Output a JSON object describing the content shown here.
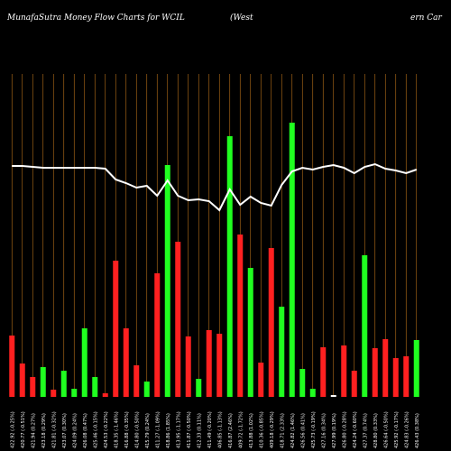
{
  "chart_data": {
    "type": "bar",
    "title": "MunafaSutra  Money Flow  Charts for WCIL",
    "title_mid": "(West",
    "title_right": "ern  Car",
    "categories": [
      "422.92 (-0.25%)",
      "420.77 (-0.51%)",
      "421.94 (0.27%)",
      "423.18 (0.29%)",
      "421.81 (-0.32%)",
      "423.07 (0.30%)",
      "424.09 (0.24%)",
      "426.08 (0.47%)",
      "425.46 (-0.15%)",
      "424.53 (-0.22%)",
      "418.35 (-1.46%)",
      "416.88 (-0.35%)",
      "414.80 (-0.50%)",
      "415.79 (0.24%)",
      "411.27 (-1.09%)",
      "418.86 (1.85%)",
      "413.95 (-1.17%)",
      "411.87 (-0.50%)",
      "412.33 (0.11%)",
      "411.49 (-0.20%)",
      "406.85 (-1.13%)",
      "416.87 (2.46%)",
      "409.72 (-1.72%)",
      "413.88 (1.02%)",
      "410.36 (-0.85%)",
      "409.18 (-0.29%)",
      "418.71 (2.33%)",
      "424.82 (1.46%)",
      "426.56 (0.41%)",
      "425.73 (-0.19%)",
      "427.16 (0.34%)",
      "427.99 (0.19%)",
      "426.80 (-0.28%)",
      "424.24 (-0.60%)",
      "427.37 (0.74%)",
      "428.80 (0.33%)",
      "426.64 (-0.50%)",
      "425.92 (-0.17%)",
      "424.83 (-0.26%)",
      "426.43 (0.38%)"
    ],
    "series": [
      {
        "values": [
          68,
          37,
          22,
          33,
          8,
          29,
          9,
          76,
          22,
          4,
          151,
          76,
          35,
          17,
          137,
          257,
          172,
          67,
          20,
          74,
          70,
          289,
          180,
          143,
          38,
          165,
          100,
          304,
          31,
          9,
          55,
          2,
          57,
          29,
          157,
          54,
          64,
          43,
          45,
          63
        ],
        "colors": [
          "#ff2020",
          "#ff2020",
          "#ff2020",
          "#20ff20",
          "#ff2020",
          "#20ff20",
          "#20ff20",
          "#20ff20",
          "#20ff20",
          "#ff2020",
          "#ff2020",
          "#ff2020",
          "#ff2020",
          "#20ff20",
          "#ff2020",
          "#20ff20",
          "#ff2020",
          "#ff2020",
          "#20ff20",
          "#ff2020",
          "#ff2020",
          "#20ff20",
          "#ff2020",
          "#20ff20",
          "#ff2020",
          "#ff2020",
          "#20ff20",
          "#20ff20",
          "#20ff20",
          "#20ff20",
          "#ff2020",
          "#ffffff",
          "#ff2020",
          "#ff2020",
          "#20ff20",
          "#ff2020",
          "#ff2020",
          "#ff2020",
          "#ff2020",
          "#20ff20"
        ]
      },
      {
        "type": "line",
        "color": "#ffffff",
        "values": [
          256,
          256,
          255,
          254,
          254,
          254,
          254,
          254,
          254,
          253,
          241,
          237,
          232,
          234,
          223,
          240,
          223,
          218,
          219,
          217,
          207,
          230,
          213,
          222,
          215,
          212,
          235,
          250,
          254,
          252,
          255,
          257,
          254,
          248,
          255,
          258,
          253,
          251,
          248,
          252
        ]
      }
    ],
    "ylim": [
      0,
      400
    ],
    "grid_color": "#b8701a"
  }
}
